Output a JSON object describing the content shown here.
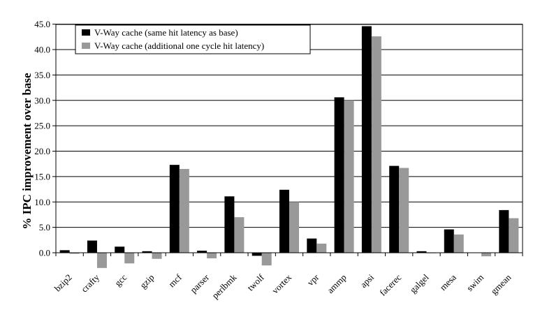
{
  "chart_data": {
    "type": "bar",
    "title": "",
    "xlabel": "",
    "ylabel": "% IPC improvement over base",
    "ylim": [
      -5,
      45
    ],
    "yticks": [
      0,
      5,
      10,
      15,
      20,
      25,
      30,
      35,
      40,
      45
    ],
    "ytick_labels": [
      "0.0",
      "5.0",
      "10.0",
      "15.0",
      "20.0",
      "25.0",
      "30.0",
      "35.0",
      "40.0",
      "45.0"
    ],
    "grid": true,
    "legend_position": "top-left",
    "categories": [
      "bzip2",
      "crafty",
      "gcc",
      "gzip",
      "mcf",
      "parser",
      "perlbmk",
      "twolf",
      "vortex",
      "vpr",
      "ammp",
      "apsi",
      "facerec",
      "galgel",
      "mesa",
      "swim",
      "gmean"
    ],
    "series": [
      {
        "name": "V-Way cache (same hit latency as base)",
        "color": "#000000",
        "values": [
          0.5,
          2.4,
          1.2,
          0.3,
          17.3,
          0.4,
          11.1,
          -0.6,
          12.4,
          2.8,
          30.6,
          44.6,
          17.1,
          0.3,
          4.6,
          0.0,
          8.4
        ]
      },
      {
        "name": "V-Way cache (additional one cycle hit latency)",
        "color": "#999999",
        "values": [
          -0.2,
          -3.0,
          -2.1,
          -1.2,
          16.5,
          -1.1,
          7.0,
          -2.5,
          10.0,
          1.8,
          30.0,
          42.6,
          16.7,
          -0.1,
          3.6,
          -0.7,
          6.8
        ]
      }
    ]
  }
}
